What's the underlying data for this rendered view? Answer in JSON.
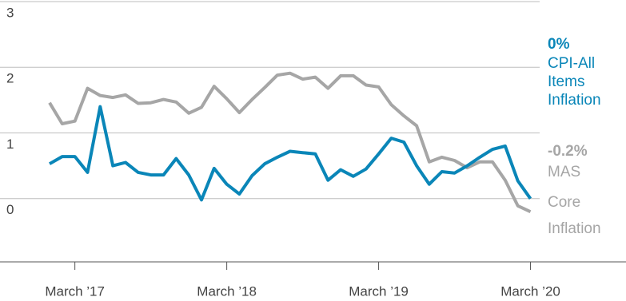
{
  "chart_data": {
    "type": "line",
    "categories": [
      null,
      null,
      "March ’17",
      null,
      null,
      null,
      null,
      null,
      null,
      null,
      null,
      null,
      null,
      null,
      "March ’18",
      null,
      null,
      null,
      null,
      null,
      null,
      null,
      null,
      null,
      null,
      null,
      "March ’19",
      null,
      null,
      null,
      null,
      null,
      null,
      null,
      null,
      null,
      null,
      null,
      "March ’20"
    ],
    "series": [
      {
        "name": "CPI-All Items Inflation",
        "label_lines": [
          "CPI-All",
          "Items",
          "Inflation"
        ],
        "end_label": "0%",
        "color": "#0a86b8",
        "values": [
          0.53,
          0.64,
          0.64,
          0.4,
          1.4,
          0.5,
          0.55,
          0.4,
          0.36,
          0.36,
          0.61,
          0.36,
          -0.02,
          0.46,
          0.22,
          0.07,
          0.35,
          0.53,
          0.63,
          0.72,
          0.7,
          0.68,
          0.28,
          0.44,
          0.34,
          0.45,
          0.68,
          0.92,
          0.86,
          0.5,
          0.22,
          0.41,
          0.39,
          0.5,
          0.63,
          0.75,
          0.8,
          0.27,
          0.0
        ]
      },
      {
        "name": "MAS Core Inflation",
        "label_lines": [
          "MAS",
          "Core",
          "Inflation"
        ],
        "end_label": "-0.2%",
        "color": "#a6a6a6",
        "values": [
          1.46,
          1.14,
          1.18,
          1.68,
          1.57,
          1.54,
          1.58,
          1.45,
          1.46,
          1.51,
          1.47,
          1.3,
          1.39,
          1.71,
          1.52,
          1.31,
          1.51,
          1.69,
          1.88,
          1.91,
          1.82,
          1.85,
          1.68,
          1.87,
          1.87,
          1.73,
          1.7,
          1.43,
          1.26,
          1.11,
          0.56,
          0.63,
          0.58,
          0.47,
          0.56,
          0.56,
          0.28,
          -0.11,
          -0.2
        ]
      }
    ],
    "ylim": [
      -1,
      3
    ],
    "yticks": [
      0,
      1,
      2,
      3
    ],
    "grid": true
  }
}
